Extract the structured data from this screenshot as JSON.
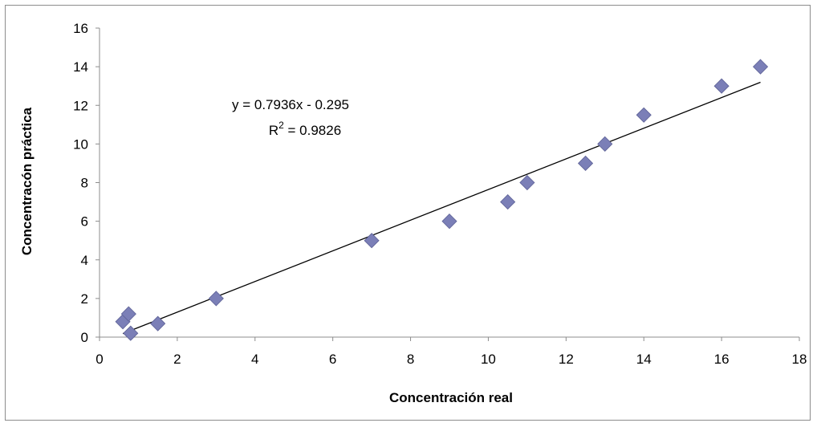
{
  "chart_data": {
    "type": "scatter",
    "title": "",
    "xlabel": "Concentración real",
    "ylabel": "Concentracón práctica",
    "xlim": [
      0,
      18
    ],
    "ylim": [
      0,
      16
    ],
    "x_ticks": [
      0,
      2,
      4,
      6,
      8,
      10,
      12,
      14,
      16,
      18
    ],
    "y_ticks": [
      0,
      2,
      4,
      6,
      8,
      10,
      12,
      14,
      16
    ],
    "grid": false,
    "legend": "none",
    "marker_color": "#7b7fb7",
    "marker_shape": "diamond",
    "series": [
      {
        "points": [
          {
            "x": 0.6,
            "y": 0.8
          },
          {
            "x": 0.75,
            "y": 1.2
          },
          {
            "x": 0.8,
            "y": 0.2
          },
          {
            "x": 1.5,
            "y": 0.7
          },
          {
            "x": 3.0,
            "y": 2.0
          },
          {
            "x": 7.0,
            "y": 5.0
          },
          {
            "x": 9.0,
            "y": 6.0
          },
          {
            "x": 10.5,
            "y": 7.0
          },
          {
            "x": 11.0,
            "y": 8.0
          },
          {
            "x": 12.5,
            "y": 9.0
          },
          {
            "x": 13.0,
            "y": 10.0
          },
          {
            "x": 14.0,
            "y": 11.5
          },
          {
            "x": 16.0,
            "y": 13.0
          },
          {
            "x": 17.0,
            "y": 14.0
          }
        ]
      }
    ],
    "trendline": {
      "slope": 0.7936,
      "intercept": -0.295,
      "x_start": 0.6,
      "x_end": 17.0,
      "color": "#000000",
      "equation_label": "y = 0.7936x - 0.295",
      "r2_prefix": "R",
      "r2_exponent": "2",
      "r2_value": " = 0.9826"
    }
  }
}
